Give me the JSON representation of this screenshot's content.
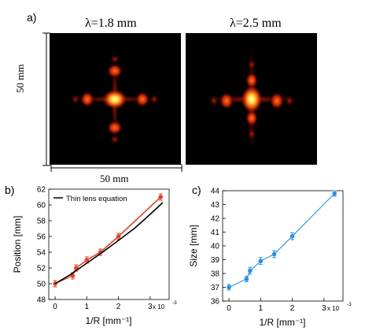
{
  "figure": {
    "panel_a": {
      "label": "a)",
      "image_left_title": "λ=1.8 mm",
      "image_right_title": "λ=2.5 mm",
      "vertical_dim": "50 mm",
      "horizontal_dim": "50 mm"
    },
    "panel_b": {
      "label": "b)"
    },
    "panel_c": {
      "label": "c)"
    }
  },
  "colors": {
    "data_b": "#d9472b",
    "model_b": "#000000",
    "data_c": "#2b8fe0",
    "model_c": "#2b8fe0",
    "image_bg": "#000000"
  },
  "chart_data": [
    {
      "type": "line",
      "xlabel": "1/R [mm⁻¹]",
      "ylabel": "Position [mm]",
      "x_exponent": "x 10",
      "x_exponent_power": "-3",
      "xlim": [
        -0.0002,
        0.0036
      ],
      "ylim": [
        48,
        62
      ],
      "xticks": [
        0,
        1,
        2,
        3
      ],
      "xtick_labels": [
        "0",
        "1",
        "2",
        "3"
      ],
      "yticks": [
        48,
        50,
        52,
        54,
        56,
        58,
        60,
        62
      ],
      "ytick_labels": [
        "48",
        "50",
        "52",
        "54",
        "56",
        "58",
        "60",
        "62"
      ],
      "legend": {
        "position": "top-left",
        "entries": [
          "Thin lens equation"
        ]
      },
      "grid": false,
      "series": [
        {
          "role": "measured",
          "x": [
            0,
            0.0005556,
            0.0006667,
            0.001,
            0.0014286,
            0.002,
            0.0033333
          ],
          "values": [
            50.0,
            51.0,
            52.0,
            53.0,
            54.0,
            56.0,
            61.0
          ],
          "errors": [
            0.4,
            0.4,
            0.4,
            0.4,
            0.4,
            0.4,
            0.4
          ],
          "markers": true
        },
        {
          "role": "fit",
          "x": [
            0,
            0.0005556,
            0.0006667,
            0.001,
            0.0014286,
            0.002,
            0.0033333
          ],
          "values": [
            50.0,
            51.3,
            52.0,
            53.0,
            54.0,
            56.0,
            61.0
          ],
          "markers": false
        },
        {
          "name": "Thin lens equation",
          "x": [
            0,
            0.0005,
            0.001,
            0.0015,
            0.002,
            0.0025,
            0.003,
            0.0034
          ],
          "values": [
            50.0,
            51.2,
            52.6,
            54.0,
            55.5,
            57.0,
            58.8,
            60.3
          ],
          "markers": false
        }
      ]
    },
    {
      "type": "line",
      "xlabel": "1/R [mm⁻¹]",
      "ylabel": "Size [mm]",
      "x_exponent": "x 10",
      "x_exponent_power": "-3",
      "xlim": [
        -0.0002,
        0.0036
      ],
      "ylim": [
        36,
        44
      ],
      "xticks": [
        0,
        1,
        2,
        3
      ],
      "xtick_labels": [
        "0",
        "1",
        "2",
        "3"
      ],
      "yticks": [
        36,
        37,
        38,
        39,
        40,
        41,
        42,
        43,
        44
      ],
      "ytick_labels": [
        "36",
        "37",
        "38",
        "39",
        "40",
        "41",
        "42",
        "43",
        "44"
      ],
      "grid": false,
      "series": [
        {
          "role": "measured",
          "x": [
            0,
            0.0005556,
            0.0006667,
            0.001,
            0.0014286,
            0.002,
            0.0033333
          ],
          "values": [
            37.0,
            37.6,
            38.2,
            38.9,
            39.4,
            40.7,
            43.8
          ],
          "errors": [
            0.2,
            0.2,
            0.25,
            0.25,
            0.25,
            0.25,
            0.2
          ],
          "markers": true
        }
      ]
    }
  ]
}
